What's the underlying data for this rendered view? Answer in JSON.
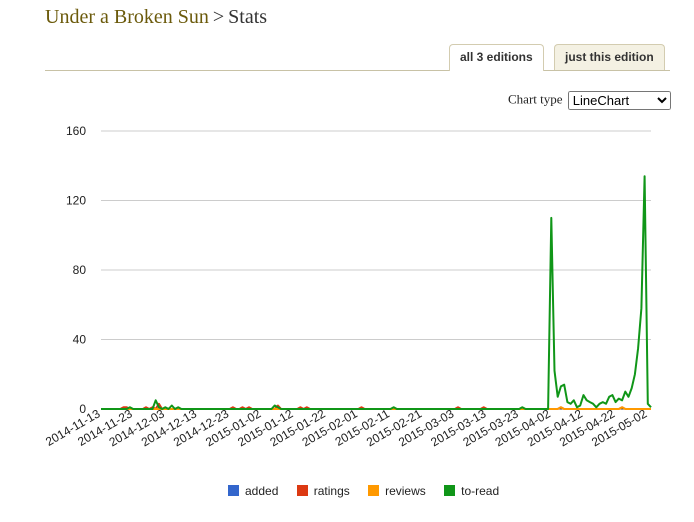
{
  "page": {
    "book_title": "Under a Broken Sun",
    "separator": ">",
    "section": "Stats"
  },
  "tabs": [
    {
      "label": "all 3 editions",
      "active": true
    },
    {
      "label": "just this edition",
      "active": false
    }
  ],
  "chart_type": {
    "label": "Chart type",
    "selected": "LineChart"
  },
  "chart_data": {
    "type": "line",
    "title": "",
    "xlabel": "",
    "ylabel": "",
    "ylim": [
      0,
      160
    ],
    "yticks": [
      0,
      40,
      80,
      120,
      160
    ],
    "x_start": "2014-11-13",
    "xtick_labels": [
      "2014-11-13",
      "2014-11-23",
      "2014-12-03",
      "2014-12-13",
      "2014-12-23",
      "2015-01-02",
      "2015-01-12",
      "2015-01-22",
      "2015-02-01",
      "2015-02-11",
      "2015-02-21",
      "2015-03-03",
      "2015-03-13",
      "2015-03-23",
      "2015-04-02",
      "2015-04-12",
      "2015-04-22",
      "2015-05-02"
    ],
    "legend_position": "bottom",
    "grid": true,
    "series": [
      {
        "name": "added",
        "color": "#3366cc",
        "points": []
      },
      {
        "name": "ratings",
        "color": "#dc3912",
        "points": [
          [
            5,
            0
          ],
          [
            7,
            1
          ],
          [
            8,
            1
          ],
          [
            9,
            0
          ],
          [
            10,
            0
          ],
          [
            14,
            1
          ],
          [
            15,
            0
          ],
          [
            16,
            1
          ],
          [
            17,
            0
          ],
          [
            18,
            3
          ],
          [
            19,
            0
          ],
          [
            41,
            1
          ],
          [
            42,
            0
          ],
          [
            43,
            0
          ],
          [
            44,
            1
          ],
          [
            45,
            0
          ],
          [
            46,
            1
          ],
          [
            47,
            0
          ],
          [
            55,
            2
          ],
          [
            56,
            0
          ],
          [
            62,
            1
          ],
          [
            63,
            0
          ],
          [
            64,
            1
          ],
          [
            65,
            0
          ],
          [
            81,
            1
          ],
          [
            82,
            0
          ],
          [
            111,
            1
          ],
          [
            112,
            0
          ],
          [
            119,
            1
          ],
          [
            120,
            0
          ],
          [
            142,
            0
          ],
          [
            143,
            1
          ],
          [
            144,
            0
          ],
          [
            162,
            1
          ],
          [
            163,
            0
          ]
        ]
      },
      {
        "name": "reviews",
        "color": "#ff9900",
        "points": [
          [
            142,
            0
          ],
          [
            143,
            1
          ],
          [
            144,
            0
          ],
          [
            162,
            1
          ],
          [
            163,
            0
          ]
        ]
      },
      {
        "name": "to-read",
        "color": "#109618",
        "points": [
          [
            0,
            0
          ],
          [
            8,
            0
          ],
          [
            9,
            1
          ],
          [
            10,
            0
          ],
          [
            16,
            0
          ],
          [
            17,
            5
          ],
          [
            18,
            1
          ],
          [
            19,
            0
          ],
          [
            20,
            1
          ],
          [
            21,
            0
          ],
          [
            22,
            2
          ],
          [
            23,
            0
          ],
          [
            24,
            1
          ],
          [
            25,
            0
          ],
          [
            53,
            0
          ],
          [
            54,
            2
          ],
          [
            55,
            1
          ],
          [
            56,
            0
          ],
          [
            90,
            0
          ],
          [
            91,
            1
          ],
          [
            92,
            0
          ],
          [
            130,
            0
          ],
          [
            131,
            1
          ],
          [
            132,
            0
          ],
          [
            139,
            0
          ],
          [
            140,
            110
          ],
          [
            141,
            22
          ],
          [
            142,
            7
          ],
          [
            143,
            13
          ],
          [
            144,
            14
          ],
          [
            145,
            4
          ],
          [
            146,
            3
          ],
          [
            147,
            5
          ],
          [
            148,
            1
          ],
          [
            149,
            2
          ],
          [
            150,
            8
          ],
          [
            151,
            5
          ],
          [
            152,
            4
          ],
          [
            153,
            3
          ],
          [
            154,
            1
          ],
          [
            155,
            3
          ],
          [
            156,
            4
          ],
          [
            157,
            3
          ],
          [
            158,
            7
          ],
          [
            159,
            8
          ],
          [
            160,
            4
          ],
          [
            161,
            6
          ],
          [
            162,
            5
          ],
          [
            163,
            10
          ],
          [
            164,
            7
          ],
          [
            165,
            12
          ],
          [
            166,
            20
          ],
          [
            167,
            35
          ],
          [
            168,
            58
          ],
          [
            169,
            134
          ],
          [
            170,
            3
          ],
          [
            171,
            1
          ]
        ]
      }
    ]
  }
}
